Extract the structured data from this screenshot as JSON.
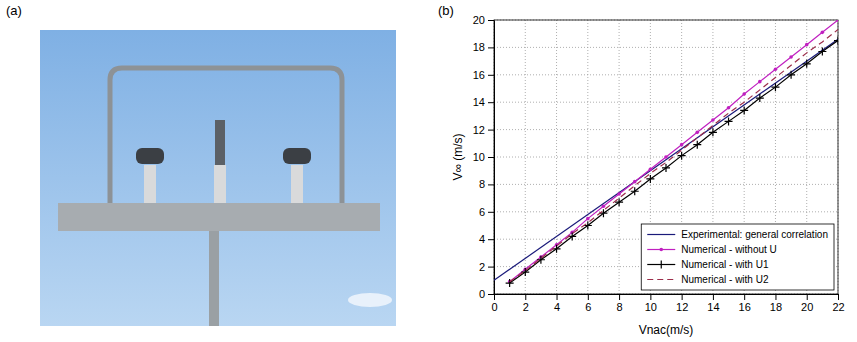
{
  "panel_labels": [
    "(a)",
    "(b)"
  ],
  "chart_data": {
    "type": "line",
    "x_label": "Vnac(m/s)",
    "y_label": "V∞ (m/s)",
    "xlim": [
      0,
      22
    ],
    "xticks": [
      0,
      2,
      4,
      6,
      8,
      10,
      12,
      14,
      16,
      18,
      20,
      22
    ],
    "ylim": [
      0,
      20
    ],
    "yticks": [
      0,
      2,
      4,
      6,
      8,
      10,
      12,
      14,
      16,
      18,
      20
    ],
    "grid": true,
    "legend": "lower right",
    "series": [
      {
        "name": "Experimental: general correlation",
        "color": "#1a1a7a",
        "line_style": "solid",
        "marker": "none",
        "x": [
          0,
          22
        ],
        "values": [
          1.0,
          18.6
        ]
      },
      {
        "name": "Numerical - without U",
        "color": "#c020c0",
        "line_style": "solid",
        "marker": "point",
        "x": [
          1,
          2,
          3,
          4,
          5,
          6,
          7,
          8,
          9,
          10,
          11,
          12,
          13,
          14,
          15,
          16,
          17,
          18,
          19,
          20,
          21,
          22
        ],
        "values": [
          0.9,
          1.8,
          2.7,
          3.6,
          4.5,
          5.5,
          6.4,
          7.3,
          8.2,
          9.1,
          10.0,
          10.9,
          11.8,
          12.7,
          13.6,
          14.6,
          15.5,
          16.4,
          17.3,
          18.2,
          19.1,
          20.0
        ]
      },
      {
        "name": "Numerical - with U1",
        "color": "#000000",
        "line_style": "solid",
        "marker": "plus",
        "x": [
          1,
          2,
          3,
          4,
          5,
          6,
          7,
          8,
          9,
          10,
          11,
          12,
          13,
          14,
          15,
          16,
          17,
          18,
          19,
          20,
          21,
          22
        ],
        "values": [
          0.8,
          1.6,
          2.5,
          3.3,
          4.2,
          5.0,
          5.9,
          6.7,
          7.5,
          8.4,
          9.2,
          10.1,
          10.9,
          11.8,
          12.6,
          13.4,
          14.3,
          15.1,
          16.0,
          16.8,
          17.7,
          18.5
        ]
      },
      {
        "name": "Numerical - with U2",
        "color": "#9b2d4a",
        "line_style": "dashed",
        "marker": "none",
        "x": [
          1,
          2,
          3,
          4,
          5,
          6,
          7,
          8,
          9,
          10,
          11,
          12,
          13,
          14,
          15,
          16,
          17,
          18,
          19,
          20,
          21,
          22
        ],
        "values": [
          0.9,
          1.7,
          2.6,
          3.5,
          4.4,
          5.2,
          6.1,
          7.0,
          7.9,
          8.8,
          9.6,
          10.5,
          11.4,
          12.3,
          13.2,
          14.0,
          14.9,
          15.8,
          16.7,
          17.6,
          18.4,
          19.3
        ]
      }
    ]
  }
}
